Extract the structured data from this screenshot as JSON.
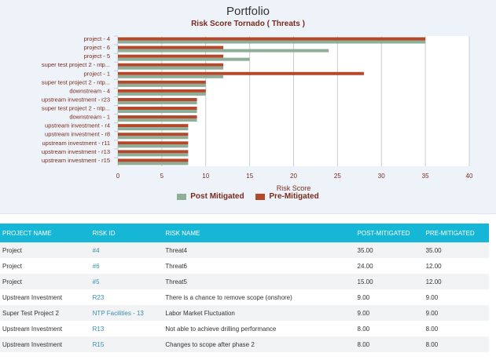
{
  "chart_data": {
    "type": "bar",
    "orientation": "horizontal",
    "title": "Portfolio",
    "subtitle": "Risk Score Tornado ( Threats )",
    "xlabel": "Risk Score",
    "xlim": [
      0,
      40
    ],
    "xticks": [
      0,
      5,
      10,
      15,
      20,
      25,
      30,
      35,
      40
    ],
    "grid": true,
    "legend": "bottom",
    "categories": [
      "project - 4",
      "project - 6",
      "project - 5",
      "super test project 2 - ntp...",
      "project - 1",
      "super test project 2 - ntp...",
      "downstream - 4",
      "upstream investment - r23",
      "super test project 2 - ntp...",
      "downstream - 1",
      "upstream investment - r4",
      "upstream investment - r8",
      "upstream investment - r11",
      "upstream investment - r13",
      "upstream investment - r15"
    ],
    "series": [
      {
        "name": "Post Mitigated",
        "color": "#8fae97",
        "values": [
          35,
          24,
          15,
          12,
          12,
          10,
          10,
          9,
          9,
          9,
          8,
          8,
          8,
          8,
          8
        ]
      },
      {
        "name": "Pre-Mitigated",
        "color": "#b5472b",
        "values": [
          35,
          12,
          12,
          12,
          28,
          10,
          10,
          9,
          9,
          9,
          8,
          8,
          8,
          8,
          8
        ]
      }
    ]
  },
  "table": {
    "headers": [
      "PROJECT NAME",
      "RISK ID",
      "RISK NAME",
      "POST-MITIGATED",
      "PRE-MITIGATED"
    ],
    "rows": [
      [
        "Project",
        "#4",
        "Threat4",
        "35.00",
        "35.00"
      ],
      [
        "Project",
        "#6",
        "Threat6",
        "24.00",
        "12.00"
      ],
      [
        "Project",
        "#5",
        "Threat5",
        "15.00",
        "12.00"
      ],
      [
        "Upstream Investment",
        "R23",
        "There is a chance to remove scope (onshore)",
        "9.00",
        "9.00"
      ],
      [
        "Super Test Project 2",
        "NTP Facilities - 13",
        "Labor Market Fluctuation",
        "9.00",
        "9.00"
      ],
      [
        "Upstream Investment",
        "R13",
        "Not able to achieve drilling performance",
        "8.00",
        "8.00"
      ],
      [
        "Upstream Investment",
        "R15",
        "Changes to scope after phase 2",
        "8.00",
        "8.00"
      ]
    ],
    "header_color": "#16b6d6"
  }
}
